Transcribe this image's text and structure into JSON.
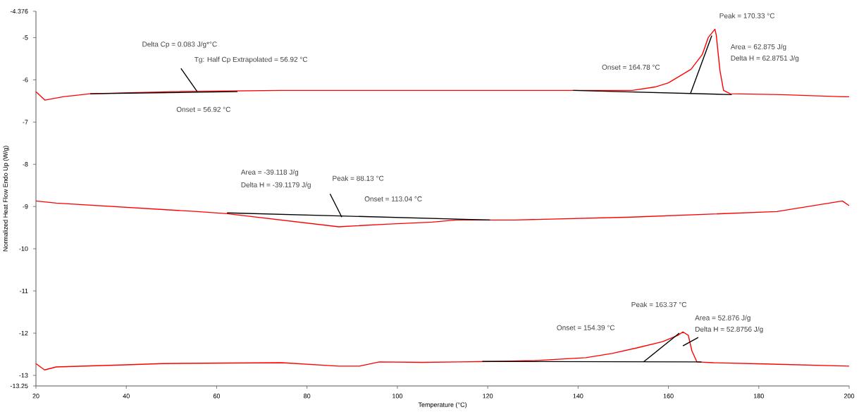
{
  "chart_data": {
    "type": "line",
    "xlabel": "Temperature (°C)",
    "ylabel": "Normalized Heat Flow Endo Up (W/g)",
    "xlim": [
      20,
      200
    ],
    "ylim": [
      -13.25,
      -4.376
    ],
    "xticks": [
      20,
      40,
      60,
      80,
      100,
      120,
      140,
      160,
      180,
      200
    ],
    "yticks": [
      -13.25,
      -13,
      -12,
      -11,
      -10,
      -9,
      -8,
      -7,
      -6,
      -5,
      -4.376
    ],
    "marker": "none",
    "line_style": "solid",
    "series": [
      {
        "color": "#ff0000",
        "x": [
          20,
          22,
          26,
          32,
          50,
          74,
          100,
          138,
          152,
          157,
          160,
          165,
          167.5,
          168.8,
          170.3,
          170.6,
          171.4,
          172.2,
          173.7,
          185,
          198.6,
          200
        ],
        "values": [
          -6.28,
          -6.48,
          -6.4,
          -6.33,
          -6.28,
          -6.25,
          -6.25,
          -6.25,
          -6.25,
          -6.17,
          -6.07,
          -5.75,
          -5.4,
          -5.0,
          -4.8,
          -4.95,
          -5.78,
          -6.25,
          -6.33,
          -6.35,
          -6.4,
          -6.4
        ]
      },
      {
        "color": "#ff0000",
        "x": [
          20,
          24.5,
          55.7,
          62.3,
          87,
          97.4,
          107.7,
          113,
          126,
          152,
          184,
          198.5,
          200
        ],
        "values": [
          -8.87,
          -8.92,
          -9.12,
          -9.17,
          -9.48,
          -9.42,
          -9.37,
          -9.32,
          -9.32,
          -9.25,
          -9.12,
          -8.87,
          -8.98
        ]
      },
      {
        "color": "#ff0000",
        "x": [
          20,
          21.9,
          24.5,
          40,
          48,
          74.4,
          87,
          91.6,
          96,
          105.6,
          113.4,
          121,
          130.5,
          141.7,
          147.5,
          153,
          158.7,
          162.1,
          163.2,
          164.4,
          165.2,
          166.3,
          170,
          181.3,
          200
        ],
        "values": [
          -12.72,
          -12.87,
          -12.8,
          -12.75,
          -12.72,
          -12.7,
          -12.78,
          -12.78,
          -12.68,
          -12.69,
          -12.68,
          -12.67,
          -12.65,
          -12.58,
          -12.48,
          -12.35,
          -12.2,
          -12.05,
          -11.97,
          -12.05,
          -12.42,
          -12.68,
          -12.7,
          -12.73,
          -12.78
        ]
      },
      {
        "color": "#000000",
        "x": [
          32,
          64.6
        ],
        "values": [
          -6.33,
          -6.28
        ]
      },
      {
        "color": "#000000",
        "x": [
          52.1,
          55.7
        ],
        "values": [
          -5.73,
          -6.28
        ]
      },
      {
        "color": "#000000",
        "x": [
          138.9,
          174
        ],
        "values": [
          -6.25,
          -6.35
        ]
      },
      {
        "color": "#000000",
        "x": [
          164.9,
          169.6
        ],
        "values": [
          -6.32,
          -4.95
        ]
      },
      {
        "color": "#000000",
        "x": [
          62.3,
          120.5
        ],
        "values": [
          -9.15,
          -9.32
        ]
      },
      {
        "color": "#000000",
        "x": [
          85.1,
          87.7
        ],
        "values": [
          -8.7,
          -9.25
        ]
      },
      {
        "color": "#000000",
        "x": [
          118.8,
          167.3
        ],
        "values": [
          -12.67,
          -12.68
        ]
      },
      {
        "color": "#000000",
        "x": [
          154.5,
          162.4
        ],
        "values": [
          -12.68,
          -12.0
        ]
      },
      {
        "color": "#000000",
        "x": [
          163.2,
          166.6
        ],
        "values": [
          -12.3,
          -12.1
        ]
      }
    ],
    "annotations": [
      "Delta Cp = 0.083 J/g*°C",
      "Tg: Half Cp Extrapolated = 56.92 °C",
      "Onset = 56.92 °C",
      "Onset = 164.78 °C",
      "Peak = 170.33 °C",
      "Area = 62.875 J/g",
      "Delta H = 62.8751 J/g",
      "Area = -39.118 J/g",
      "Delta H = -39.1179 J/g",
      "Peak = 88.13 °C",
      "Onset = 113.04 °C",
      "Peak = 163.37 °C",
      "Onset = 154.39 °C",
      "Area = 52.876 J/g",
      "Delta H = 52.8756 J/g"
    ]
  }
}
